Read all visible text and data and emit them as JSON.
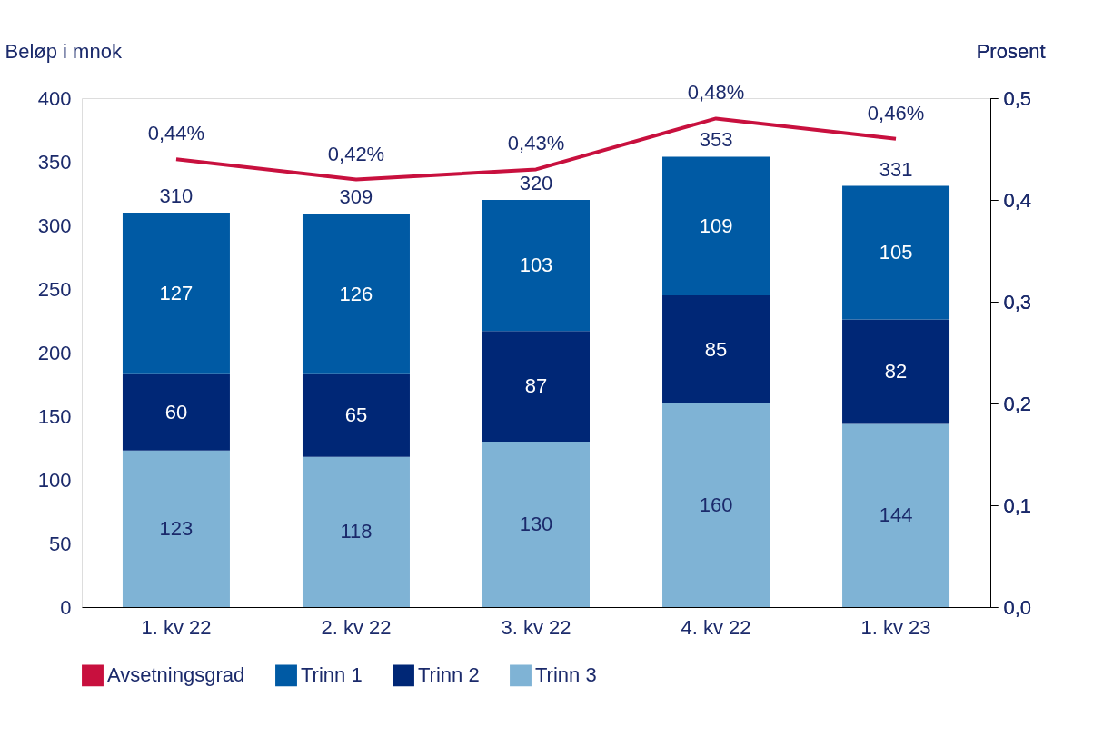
{
  "chart_data": {
    "type": "bar",
    "stacked": true,
    "ylabel": "Beløp i mnok",
    "y2label": "Prosent",
    "categories": [
      "1. kv 22",
      "2. kv 22",
      "3. kv 22",
      "4. kv 22",
      "1. kv 23"
    ],
    "series": [
      {
        "name": "Trinn 3",
        "color": "#7fb3d5",
        "values": [
          123,
          118,
          130,
          160,
          144
        ]
      },
      {
        "name": "Trinn 2",
        "color": "#002776",
        "values": [
          60,
          65,
          87,
          85,
          82
        ]
      },
      {
        "name": "Trinn 1",
        "color": "#005aa4",
        "values": [
          127,
          126,
          103,
          109,
          105
        ]
      },
      {
        "name": "Avsetningsgrad",
        "type": "line",
        "axis": "y2",
        "color": "#c8103e",
        "values": [
          0.44,
          0.42,
          0.43,
          0.48,
          0.46
        ],
        "value_labels": [
          "0,44%",
          "0,42%",
          "0,43%",
          "0,48%",
          "0,46%"
        ]
      }
    ],
    "data_labels": true,
    "totals": [
      "310",
      "309",
      "320",
      "353",
      "331"
    ],
    "ylim": [
      0,
      400
    ],
    "yticks": [
      0,
      50,
      100,
      150,
      200,
      250,
      300,
      350,
      400
    ],
    "y2lim": [
      0,
      0.5
    ],
    "y2ticks": [
      {
        "value": 0,
        "label": "0,0"
      },
      {
        "value": 0.1,
        "label": "0,1"
      },
      {
        "value": 0.2,
        "label": "0,2"
      },
      {
        "value": 0.3,
        "label": "0,3"
      },
      {
        "value": 0.4,
        "label": "0,4"
      },
      {
        "value": 0.5,
        "label": "0,5"
      }
    ],
    "grid": false,
    "legend": "bottom"
  }
}
